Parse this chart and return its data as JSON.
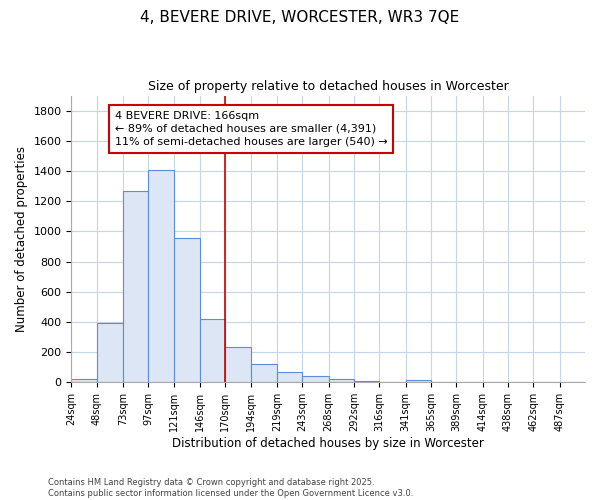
{
  "title": "4, BEVERE DRIVE, WORCESTER, WR3 7QE",
  "subtitle": "Size of property relative to detached houses in Worcester",
  "xlabel": "Distribution of detached houses by size in Worcester",
  "ylabel": "Number of detached properties",
  "footer_line1": "Contains HM Land Registry data © Crown copyright and database right 2025.",
  "footer_line2": "Contains public sector information licensed under the Open Government Licence v3.0.",
  "bar_edges": [
    24,
    48,
    73,
    97,
    121,
    146,
    170,
    194,
    219,
    243,
    268,
    292,
    316,
    341,
    365,
    389,
    414,
    438,
    462,
    487,
    511
  ],
  "bar_heights": [
    25,
    395,
    1265,
    1405,
    955,
    420,
    235,
    120,
    70,
    45,
    20,
    10,
    5,
    15,
    0,
    0,
    0,
    0,
    0,
    0
  ],
  "bar_color": "#dce6f5",
  "bar_edge_color": "#5b8dd9",
  "red_line_x": 170,
  "ylim": [
    0,
    1900
  ],
  "yticks": [
    0,
    200,
    400,
    600,
    800,
    1000,
    1200,
    1400,
    1600,
    1800
  ],
  "annotation_title": "4 BEVERE DRIVE: 166sqm",
  "annotation_line1": "← 89% of detached houses are smaller (4,391)",
  "annotation_line2": "11% of semi-detached houses are larger (540) →",
  "annotation_box_color": "#ffffff",
  "annotation_box_edge_color": "#cc0000",
  "grid_color": "#c5d5ea",
  "bg_color": "#ffffff",
  "title_fontsize": 11,
  "subtitle_fontsize": 9,
  "annotation_fontsize": 8
}
